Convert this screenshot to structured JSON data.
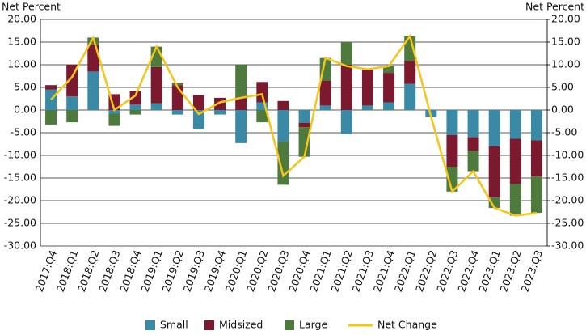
{
  "chart_data": {
    "type": "bar",
    "y_label": "Net Percent",
    "y2_label": "Net Percent",
    "categories": [
      "2017:Q4",
      "2018:Q1",
      "2018:Q2",
      "2018:Q3",
      "2018:Q4",
      "2019:Q1",
      "2019:Q2",
      "2019:Q3",
      "2019:Q4",
      "2020:Q1",
      "2020:Q2",
      "2020:Q3",
      "2020:Q4",
      "2021:Q1",
      "2021:Q2",
      "2021:Q3",
      "2021:Q4",
      "2022:Q1",
      "2022:Q2",
      "2022:Q3",
      "2022:Q4",
      "2023:Q1",
      "2023:Q2",
      "2023:Q3"
    ],
    "series": [
      {
        "name": "Small",
        "type": "bar",
        "color": "#3a8aa6",
        "values": [
          4.5,
          3,
          8.5,
          -0.8,
          1.2,
          1.5,
          -1,
          -4.2,
          -1,
          -7.3,
          1.7,
          -7,
          -2.8,
          1,
          -5.3,
          1,
          1.7,
          5.8,
          -1.5,
          -5.5,
          -6,
          -8,
          -6.3,
          -6.7
        ]
      },
      {
        "name": "Midsized",
        "type": "bar",
        "color": "#7b1a2e",
        "values": [
          1,
          7,
          6,
          3.5,
          3,
          8,
          5.5,
          3.3,
          2.7,
          2.8,
          4.5,
          2,
          -1,
          5.5,
          10,
          8,
          6.5,
          5,
          0,
          -7,
          -3,
          -11.3,
          -10,
          -8
        ]
      },
      {
        "name": "Large",
        "type": "bar",
        "color": "#4e7a3d",
        "values": [
          -3.2,
          -2.7,
          1.5,
          -2.7,
          -1,
          4.5,
          0.5,
          0,
          0,
          7.2,
          -2.7,
          -9.5,
          -6.5,
          5,
          5,
          0,
          1.5,
          5.5,
          0,
          -5.5,
          -4.5,
          -2.3,
          -7,
          -8
        ]
      },
      {
        "name": "Net Change",
        "type": "line",
        "color": "#f5c518",
        "values": [
          2.3,
          7.3,
          16,
          0,
          3.2,
          14,
          5,
          -0.9,
          1.7,
          2.7,
          3.5,
          -14.5,
          -10.3,
          11.5,
          9.7,
          9,
          9.7,
          16.3,
          -1.5,
          -18,
          -13.5,
          -21.6,
          -23.3,
          -22.7
        ]
      }
    ],
    "ylim": [
      -30,
      20
    ],
    "yticks": [
      {
        "value": -30,
        "label": "-30.00"
      },
      {
        "value": -25,
        "label": "-25.00"
      },
      {
        "value": -20,
        "label": "-20.00"
      },
      {
        "value": -15,
        "label": "-15.00"
      },
      {
        "value": -10,
        "label": "-10.00"
      },
      {
        "value": -5,
        "label": "-5.00"
      },
      {
        "value": 0,
        "label": "0.00"
      },
      {
        "value": 5,
        "label": "5.00"
      },
      {
        "value": 10,
        "label": "10.00"
      },
      {
        "value": 15,
        "label": "15.00"
      },
      {
        "value": 20,
        "label": "20.00"
      }
    ],
    "y2lim": [
      -30,
      20
    ],
    "y2ticks": [
      {
        "value": -30,
        "label": "-30.00"
      },
      {
        "value": -25,
        "label": "-25.00"
      },
      {
        "value": -20,
        "label": "-20.00"
      },
      {
        "value": -15,
        "label": "-15.00"
      },
      {
        "value": -10,
        "label": "-10.00"
      },
      {
        "value": -5,
        "label": "-5.00"
      },
      {
        "value": 0,
        "label": "0.00"
      },
      {
        "value": 5,
        "label": "5.00"
      },
      {
        "value": 10,
        "label": "10.00"
      },
      {
        "value": 15,
        "label": "15.00"
      },
      {
        "value": 20,
        "label": "20.00"
      }
    ],
    "grid": true,
    "legend": "bottom"
  }
}
